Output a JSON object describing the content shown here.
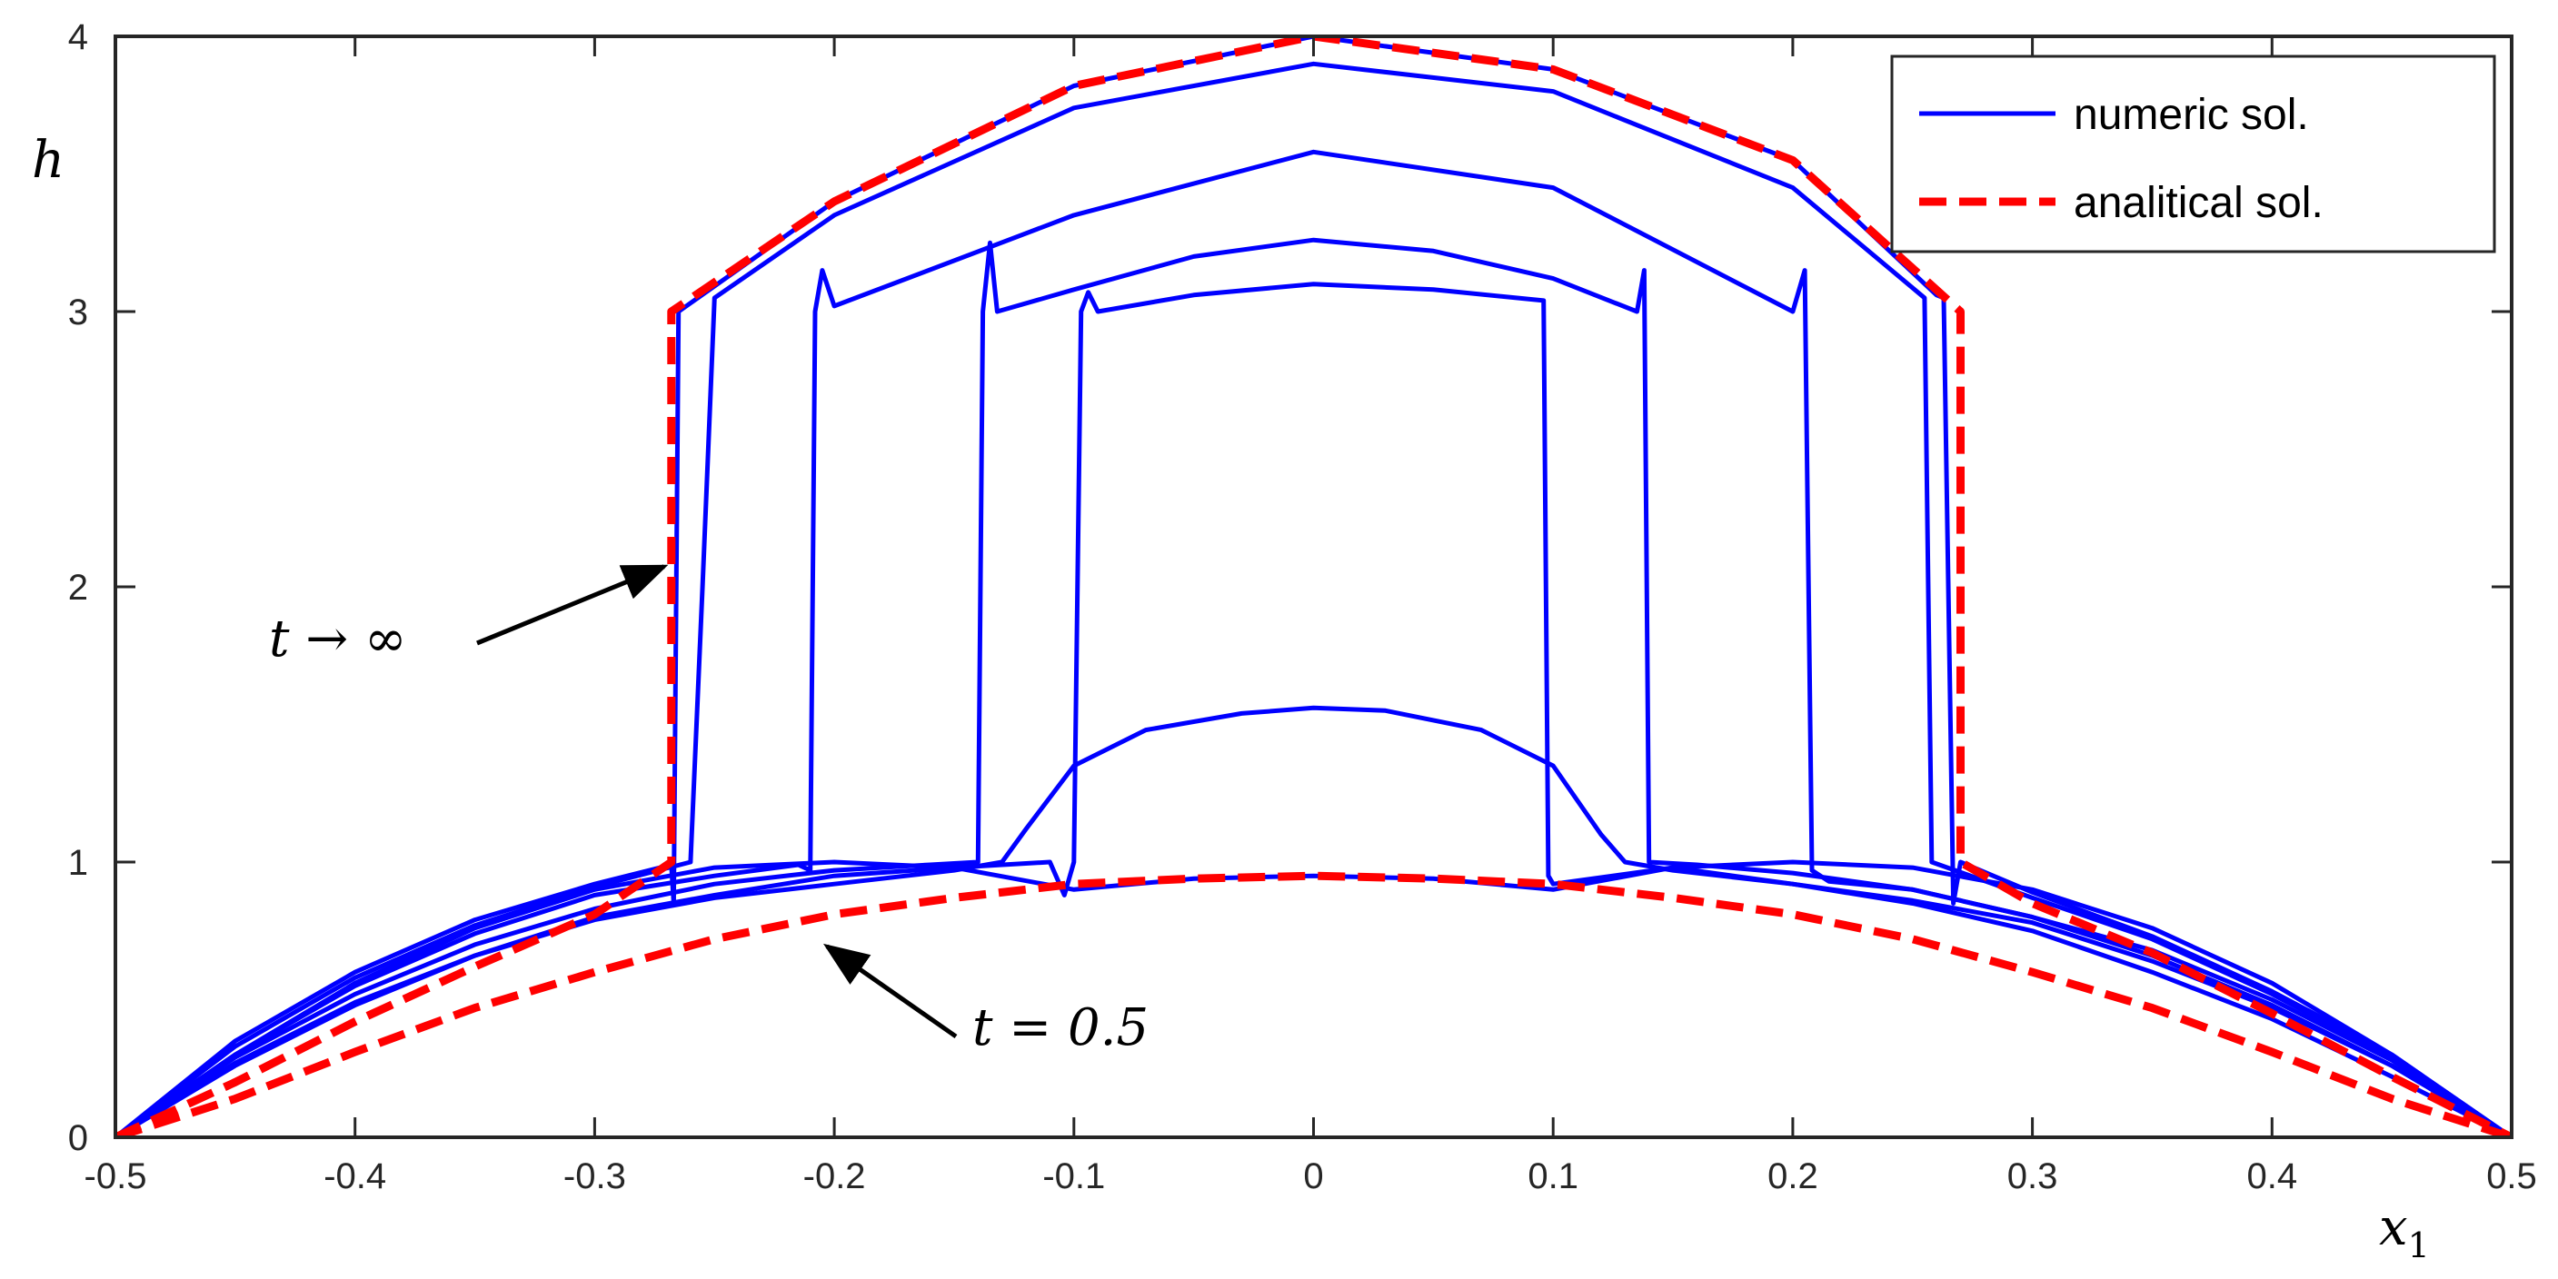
{
  "chart_data": {
    "type": "line",
    "xlabel": "x",
    "xlabel_sub": "1",
    "ylabel": "h",
    "xlim": [
      -0.5,
      0.5
    ],
    "ylim": [
      0,
      4
    ],
    "xticks": [
      -0.5,
      -0.4,
      -0.3,
      -0.2,
      -0.1,
      0,
      0.1,
      0.2,
      0.3,
      0.4,
      0.5
    ],
    "xtick_labels": [
      "-0.5",
      "-0.4",
      "-0.3",
      "-0.2",
      "-0.1",
      "0",
      "0.1",
      "0.2",
      "0.3",
      "0.4",
      "0.5"
    ],
    "yticks": [
      0,
      1,
      2,
      3,
      4
    ],
    "ytick_labels": [
      "0",
      "1",
      "2",
      "3",
      "4"
    ],
    "grid": false,
    "legend_position": "top-right",
    "colors": {
      "numeric": "#0000ff",
      "analytical": "#ff0000"
    },
    "series": [
      {
        "name": "numeric sol.",
        "style": "solid",
        "curves": [
          [
            [
              -0.5,
              0
            ],
            [
              -0.45,
              0.3
            ],
            [
              -0.4,
              0.56
            ],
            [
              -0.35,
              0.76
            ],
            [
              -0.3,
              0.9
            ],
            [
              -0.25,
              0.98
            ],
            [
              -0.2,
              1.0
            ],
            [
              -0.15,
              0.98
            ],
            [
              -0.1,
              0.9
            ],
            [
              -0.05,
              0.94
            ],
            [
              0,
              0.95
            ],
            [
              0.05,
              0.94
            ],
            [
              0.1,
              0.9
            ],
            [
              0.15,
              0.98
            ],
            [
              0.2,
              1.0
            ],
            [
              0.25,
              0.98
            ],
            [
              0.3,
              0.9
            ],
            [
              0.35,
              0.76
            ],
            [
              0.4,
              0.56
            ],
            [
              0.45,
              0.3
            ],
            [
              0.5,
              0
            ]
          ],
          [
            [
              -0.5,
              0
            ],
            [
              -0.45,
              0.27
            ],
            [
              -0.4,
              0.49
            ],
            [
              -0.35,
              0.66
            ],
            [
              -0.3,
              0.79
            ],
            [
              -0.25,
              0.87
            ],
            [
              -0.2,
              0.92
            ],
            [
              -0.15,
              0.97
            ],
            [
              -0.13,
              1.0
            ],
            [
              -0.12,
              1.12
            ],
            [
              -0.1,
              1.35
            ],
            [
              -0.07,
              1.48
            ],
            [
              -0.03,
              1.54
            ],
            [
              0,
              1.56
            ],
            [
              0.03,
              1.55
            ],
            [
              0.07,
              1.48
            ],
            [
              0.1,
              1.35
            ],
            [
              0.12,
              1.1
            ],
            [
              0.13,
              1.0
            ],
            [
              0.15,
              0.97
            ],
            [
              0.2,
              0.92
            ],
            [
              0.25,
              0.86
            ],
            [
              0.3,
              0.78
            ],
            [
              0.35,
              0.64
            ],
            [
              0.4,
              0.47
            ],
            [
              0.45,
              0.26
            ],
            [
              0.5,
              0
            ]
          ],
          [
            [
              -0.5,
              0
            ],
            [
              -0.45,
              0.26
            ],
            [
              -0.4,
              0.48
            ],
            [
              -0.35,
              0.66
            ],
            [
              -0.3,
              0.8
            ],
            [
              -0.25,
              0.88
            ],
            [
              -0.2,
              0.95
            ],
            [
              -0.15,
              0.98
            ],
            [
              -0.11,
              1.0
            ],
            [
              -0.104,
              0.88
            ],
            [
              -0.1,
              1.0
            ],
            [
              -0.097,
              3.0
            ],
            [
              -0.094,
              3.07
            ],
            [
              -0.09,
              3.0
            ],
            [
              -0.05,
              3.06
            ],
            [
              0,
              3.1
            ],
            [
              0.05,
              3.08
            ],
            [
              0.096,
              3.04
            ],
            [
              0.098,
              0.95
            ],
            [
              0.1,
              0.92
            ],
            [
              0.15,
              0.98
            ],
            [
              0.2,
              0.92
            ],
            [
              0.25,
              0.85
            ],
            [
              0.3,
              0.75
            ],
            [
              0.35,
              0.6
            ],
            [
              0.4,
              0.43
            ],
            [
              0.45,
              0.22
            ],
            [
              0.5,
              0
            ]
          ],
          [
            [
              -0.5,
              0
            ],
            [
              -0.45,
              0.29
            ],
            [
              -0.4,
              0.52
            ],
            [
              -0.35,
              0.7
            ],
            [
              -0.3,
              0.83
            ],
            [
              -0.25,
              0.92
            ],
            [
              -0.2,
              0.97
            ],
            [
              -0.16,
              0.99
            ],
            [
              -0.14,
              1.0
            ],
            [
              -0.138,
              3.0
            ],
            [
              -0.135,
              3.25
            ],
            [
              -0.132,
              3.0
            ],
            [
              -0.1,
              3.08
            ],
            [
              -0.05,
              3.2
            ],
            [
              0,
              3.26
            ],
            [
              0.05,
              3.22
            ],
            [
              0.1,
              3.12
            ],
            [
              0.135,
              3.0
            ],
            [
              0.138,
              3.15
            ],
            [
              0.14,
              1.0
            ],
            [
              0.16,
              0.99
            ],
            [
              0.2,
              0.96
            ],
            [
              0.25,
              0.9
            ],
            [
              0.3,
              0.8
            ],
            [
              0.35,
              0.66
            ],
            [
              0.4,
              0.48
            ],
            [
              0.45,
              0.26
            ],
            [
              0.5,
              0
            ]
          ],
          [
            [
              -0.5,
              0
            ],
            [
              -0.45,
              0.3
            ],
            [
              -0.4,
              0.55
            ],
            [
              -0.35,
              0.74
            ],
            [
              -0.3,
              0.88
            ],
            [
              -0.25,
              0.95
            ],
            [
              -0.215,
              0.99
            ],
            [
              -0.21,
              0.97
            ],
            [
              -0.208,
              3.0
            ],
            [
              -0.205,
              3.15
            ],
            [
              -0.2,
              3.02
            ],
            [
              -0.1,
              3.35
            ],
            [
              0,
              3.58
            ],
            [
              0.1,
              3.45
            ],
            [
              0.2,
              3.0
            ],
            [
              0.205,
              3.15
            ],
            [
              0.208,
              0.97
            ],
            [
              0.215,
              0.93
            ],
            [
              0.25,
              0.9
            ],
            [
              0.3,
              0.8
            ],
            [
              0.35,
              0.68
            ],
            [
              0.4,
              0.5
            ],
            [
              0.45,
              0.28
            ],
            [
              0.5,
              0
            ]
          ],
          [
            [
              -0.5,
              0
            ],
            [
              -0.45,
              0.33
            ],
            [
              -0.4,
              0.58
            ],
            [
              -0.35,
              0.77
            ],
            [
              -0.3,
              0.91
            ],
            [
              -0.26,
              1.0
            ],
            [
              -0.255,
              2.0
            ],
            [
              -0.25,
              3.05
            ],
            [
              -0.2,
              3.35
            ],
            [
              -0.1,
              3.74
            ],
            [
              0,
              3.9
            ],
            [
              0.1,
              3.8
            ],
            [
              0.2,
              3.45
            ],
            [
              0.255,
              3.05
            ],
            [
              0.258,
              1.0
            ],
            [
              0.3,
              0.87
            ],
            [
              0.35,
              0.72
            ],
            [
              0.4,
              0.52
            ],
            [
              0.45,
              0.29
            ],
            [
              0.5,
              0
            ]
          ],
          [
            [
              -0.5,
              0
            ],
            [
              -0.45,
              0.35
            ],
            [
              -0.4,
              0.6
            ],
            [
              -0.35,
              0.79
            ],
            [
              -0.3,
              0.92
            ],
            [
              -0.268,
              0.99
            ],
            [
              -0.267,
              0.85
            ],
            [
              -0.265,
              3.0
            ],
            [
              -0.2,
              3.4
            ],
            [
              -0.1,
              3.82
            ],
            [
              0,
              4.0
            ],
            [
              0.1,
              3.88
            ],
            [
              0.2,
              3.55
            ],
            [
              0.26,
              3.06
            ],
            [
              0.263,
              3.05
            ],
            [
              0.267,
              0.85
            ],
            [
              0.27,
              1.0
            ],
            [
              0.3,
              0.89
            ],
            [
              0.35,
              0.73
            ],
            [
              0.4,
              0.53
            ],
            [
              0.45,
              0.3
            ],
            [
              0.5,
              0
            ]
          ]
        ]
      },
      {
        "name": "analitical sol.",
        "style": "dashed",
        "curves": [
          [
            [
              -0.5,
              0
            ],
            [
              -0.45,
              0.14
            ],
            [
              -0.4,
              0.31
            ],
            [
              -0.35,
              0.47
            ],
            [
              -0.3,
              0.6
            ],
            [
              -0.25,
              0.72
            ],
            [
              -0.2,
              0.81
            ],
            [
              -0.15,
              0.87
            ],
            [
              -0.1,
              0.92
            ],
            [
              -0.05,
              0.94
            ],
            [
              0,
              0.95
            ],
            [
              0.05,
              0.94
            ],
            [
              0.1,
              0.92
            ],
            [
              0.15,
              0.87
            ],
            [
              0.2,
              0.81
            ],
            [
              0.25,
              0.72
            ],
            [
              0.3,
              0.6
            ],
            [
              0.35,
              0.47
            ],
            [
              0.4,
              0.31
            ],
            [
              0.45,
              0.14
            ],
            [
              0.5,
              0
            ]
          ],
          [
            [
              -0.5,
              0
            ],
            [
              -0.45,
              0.2
            ],
            [
              -0.4,
              0.42
            ],
            [
              -0.35,
              0.62
            ],
            [
              -0.3,
              0.81
            ],
            [
              -0.268,
              1.0
            ],
            [
              -0.268,
              3.0
            ],
            [
              -0.2,
              3.4
            ],
            [
              -0.1,
              3.82
            ],
            [
              0,
              4.0
            ],
            [
              0.1,
              3.88
            ],
            [
              0.2,
              3.55
            ],
            [
              0.27,
              3.0
            ],
            [
              0.27,
              1.0
            ],
            [
              0.3,
              0.85
            ],
            [
              0.35,
              0.67
            ],
            [
              0.4,
              0.45
            ],
            [
              0.45,
              0.22
            ],
            [
              0.5,
              0
            ]
          ]
        ]
      }
    ],
    "annotations": [
      {
        "text": "t → ∞",
        "points_to": [
          -0.268,
          2.1
        ]
      },
      {
        "text": "t = 0.5",
        "points_to": [
          -0.2,
          0.72
        ]
      }
    ]
  }
}
